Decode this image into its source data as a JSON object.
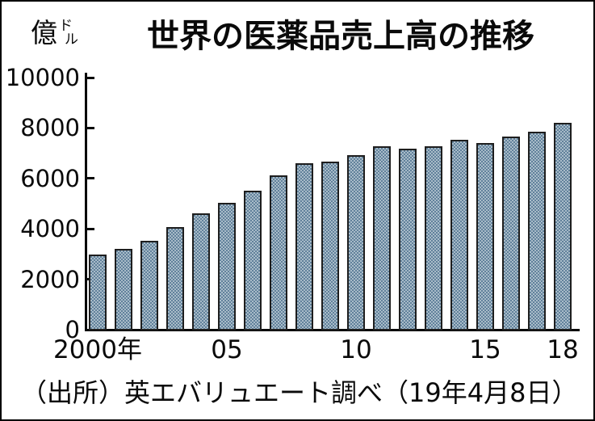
{
  "header": {
    "unit_main": "億",
    "unit_sub_top": "ド",
    "unit_sub_bottom": "ル",
    "title": "世界の医薬品売上高の推移"
  },
  "footer": {
    "source_note": "（出所）英エバリュエート調べ（19年4月8日）"
  },
  "chart_data": {
    "type": "bar",
    "title": "世界の医薬品売上高の推移",
    "unit": "億ドル",
    "categories": [
      "2000",
      "2001",
      "2002",
      "2003",
      "2004",
      "2005",
      "2006",
      "2007",
      "2008",
      "2009",
      "2010",
      "2011",
      "2012",
      "2013",
      "2014",
      "2015",
      "2016",
      "2017",
      "2018"
    ],
    "values": [
      3000,
      3250,
      3550,
      4100,
      4650,
      5050,
      5550,
      6150,
      6650,
      6700,
      6950,
      7300,
      7200,
      7300,
      7550,
      7450,
      7700,
      7900,
      8250
    ],
    "ylim": [
      0,
      10000
    ],
    "y_ticks": [
      0,
      2000,
      4000,
      6000,
      8000,
      10000
    ],
    "x_tick_labels": [
      {
        "bar_index": 0,
        "label": "2000年"
      },
      {
        "bar_index": 5,
        "label": "05"
      },
      {
        "bar_index": 10,
        "label": "10"
      },
      {
        "bar_index": 15,
        "label": "15"
      },
      {
        "bar_index": 18,
        "label": "18"
      }
    ],
    "grid": false,
    "legend": "none",
    "colors": {
      "bar_base": "#61819b",
      "bar_checker": "#a9bcc9",
      "bar_border": "#1e1e1e",
      "axis": "#0a0a0a",
      "text": "#0a0a0a",
      "background": "#ffffff"
    }
  }
}
